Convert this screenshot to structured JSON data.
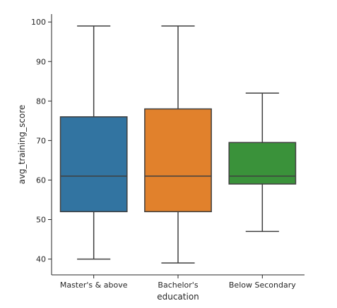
{
  "chart_data": {
    "type": "boxplot",
    "xlabel": "education",
    "ylabel": "avg_training_score",
    "categories": [
      "Master's & above",
      "Bachelor's",
      "Below Secondary"
    ],
    "boxes": [
      {
        "category": "Master's & above",
        "min": 40,
        "q1": 52,
        "median": 61,
        "q3": 76,
        "max": 99,
        "color": "#3274a1"
      },
      {
        "category": "Bachelor's",
        "min": 39,
        "q1": 52,
        "median": 61,
        "q3": 78,
        "max": 99,
        "color": "#e1812c"
      },
      {
        "category": "Below Secondary",
        "min": 47,
        "q1": 59,
        "median": 61,
        "q3": 69.5,
        "max": 82,
        "color": "#3a923a"
      }
    ],
    "ylim": [
      36,
      102
    ],
    "yticks": [
      40,
      50,
      60,
      70,
      80,
      90,
      100
    ],
    "grid": false,
    "style": {
      "edge_color": "#3f3f3f",
      "axis_color": "#262626"
    }
  }
}
